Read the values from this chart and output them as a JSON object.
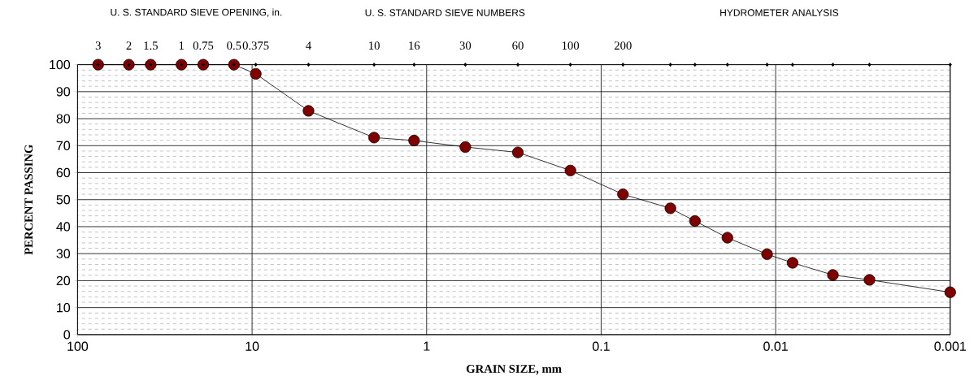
{
  "chart_data": {
    "type": "line",
    "xlabel": "GRAIN SIZE, mm",
    "ylabel": "PERCENT PASSING",
    "annotations": [
      "U. S. STANDARD SIEVE OPENING, in.",
      "U. S. STANDARD SIEVE NUMBERS",
      "HYDROMETER ANALYSIS",
      {
        "text": "3",
        "x": 76.2,
        "y": 100
      },
      {
        "text": "2",
        "x": 50.8,
        "y": 100
      },
      {
        "text": "1.5",
        "x": 38.1,
        "y": 100
      },
      {
        "text": "1",
        "x": 25.4,
        "y": 100
      },
      {
        "text": "0.75",
        "x": 19.05,
        "y": 100
      },
      {
        "text": "0.5",
        "x": 12.7,
        "y": 100
      },
      {
        "text": "0.375",
        "x": 9.525,
        "y": 100
      },
      {
        "text": "4",
        "x": 4.75,
        "y": 100
      },
      {
        "text": "10",
        "x": 2.0,
        "y": 100
      },
      {
        "text": "16",
        "x": 1.18,
        "y": 100
      },
      {
        "text": "30",
        "x": 0.6,
        "y": 100
      },
      {
        "text": "60",
        "x": 0.3,
        "y": 100
      },
      {
        "text": "100",
        "x": 0.15,
        "y": 100
      },
      {
        "text": "200",
        "x": 0.075,
        "y": 100
      }
    ],
    "series": [
      {
        "color": "#800000",
        "marker": "circle",
        "x": [
          76.2,
          50.8,
          38.1,
          25.4,
          19.05,
          12.7,
          9.525,
          4.75,
          2.0,
          1.18,
          0.6,
          0.3,
          0.15,
          0.075,
          0.0401,
          0.029,
          0.0189,
          0.0112,
          0.008,
          0.0047,
          0.0029,
          0.001
        ],
        "values": [
          100,
          100,
          100,
          100,
          100,
          100,
          96.6,
          82.9,
          73.0,
          71.9,
          69.5,
          67.5,
          60.8,
          52.0,
          46.8,
          42.1,
          35.9,
          29.8,
          26.6,
          22.1,
          20.3,
          15.7
        ]
      },
      {
        "type": "scatter",
        "color": "#000000",
        "marker": "diamond",
        "x": [
          76.2,
          50.8,
          38.1,
          25.4,
          19.05,
          12.7,
          9.525,
          4.75,
          2.0,
          1.18,
          0.6,
          0.3,
          0.15,
          0.075,
          0.0401,
          0.029,
          0.0189,
          0.0112,
          0.008,
          0.0047,
          0.0029,
          0.001
        ],
        "values": [
          100,
          100,
          100,
          100,
          100,
          100,
          100,
          100,
          100,
          100,
          100,
          100,
          100,
          100,
          100,
          100,
          100,
          100,
          100,
          100,
          100,
          100
        ]
      }
    ],
    "log": "x",
    "xlim": [
      100,
      0.001
    ],
    "xticks": [
      100,
      10,
      1,
      0.1,
      0.01,
      0.001
    ],
    "ylim": [
      0,
      100
    ],
    "yticks": [
      0,
      10,
      20,
      30,
      40,
      50,
      60,
      70,
      80,
      90,
      100
    ],
    "grid": true,
    "line_style": "solid"
  }
}
